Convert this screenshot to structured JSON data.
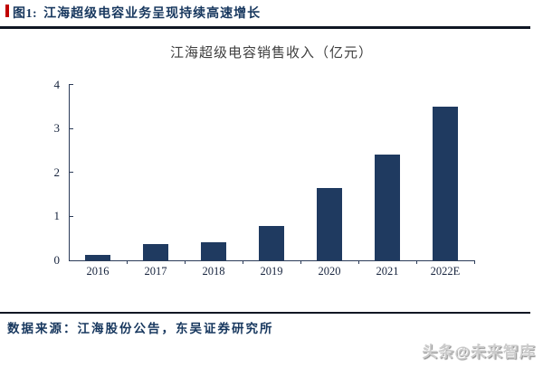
{
  "figure": {
    "tag": "图1:",
    "title": "江海超级电容业务呈现持续高速增长"
  },
  "chart_data": {
    "type": "bar",
    "title": "江海超级电容销售收入（亿元）",
    "categories": [
      "2016",
      "2017",
      "2018",
      "2019",
      "2020",
      "2021",
      "2022E"
    ],
    "values": [
      0.13,
      0.37,
      0.42,
      0.78,
      1.65,
      2.4,
      3.5
    ],
    "xlabel": "",
    "ylabel": "",
    "ylim": [
      0,
      4
    ],
    "yticks": [
      0,
      1,
      2,
      3,
      4
    ],
    "grid": false,
    "legend": "none",
    "bar_color": "#1f3a60"
  },
  "footer": {
    "source": "数据来源：江海股份公告，东吴证券研究所",
    "watermark": "头条@未来智库"
  },
  "colors": {
    "accent_navy": "#17375e",
    "bar_navy": "#1f3a60",
    "rule_dark": "#0f1623",
    "marker_red": "#c00000",
    "axis_navy": "#2b3b58",
    "watermark_gray": "#cccccc"
  }
}
